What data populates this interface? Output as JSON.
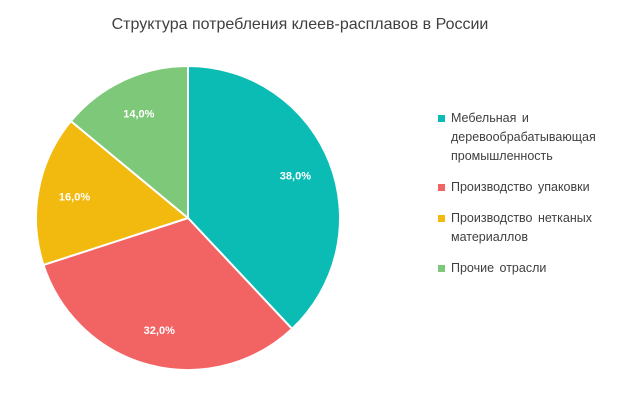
{
  "chart_data": {
    "type": "pie",
    "title": "Структура потребления клеев-расплавов в России",
    "slices": [
      {
        "label": "Мебельная и деревообрабатывающая промышленность",
        "value": 38.0,
        "value_label": "38,0%",
        "color": "#0BBCB5"
      },
      {
        "label": "Производство упаковки",
        "value": 32.0,
        "value_label": "32,0%",
        "color": "#F26464"
      },
      {
        "label": "Производство нетканых материаллов",
        "value": 16.0,
        "value_label": "16,0%",
        "color": "#F2B90E"
      },
      {
        "label": "Прочие отрасли",
        "value": 14.0,
        "value_label": "14,0%",
        "color": "#7EC87A"
      }
    ],
    "legend_position": "right"
  }
}
